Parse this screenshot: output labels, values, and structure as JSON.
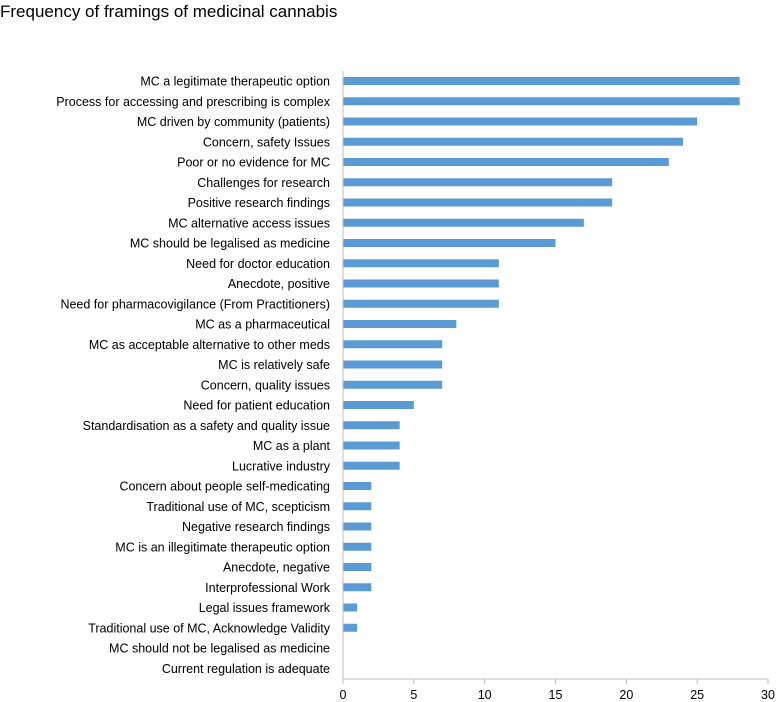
{
  "chart_data": {
    "type": "bar",
    "orientation": "horizontal",
    "title": "Frequency of framings of medicinal cannabis",
    "xlabel": "",
    "ylabel": "",
    "xlim": [
      0,
      30
    ],
    "xticks": [
      0,
      5,
      10,
      15,
      20,
      25,
      30
    ],
    "grid": false,
    "legend": "none",
    "bar_color": "#5b9bd5",
    "categories": [
      "MC a legitimate therapeutic option",
      "Process for accessing and prescribing is complex",
      "MC driven by community (patients)",
      "Concern, safety Issues",
      "Poor or no evidence for MC",
      "Challenges for research",
      "Positive research findings",
      "MC alternative access issues",
      "MC should be legalised as medicine",
      "Need for doctor education",
      "Anecdote, positive",
      "Need for pharmacovigilance (From Practitioners)",
      "MC as a pharmaceutical",
      "MC as acceptable alternative to other meds",
      "MC is relatively safe",
      "Concern, quality issues",
      "Need for patient education",
      "Standardisation as a safety and quality issue",
      "MC as a plant",
      "Lucrative industry",
      "Concern about people self-medicating",
      "Traditional use of MC, scepticism",
      "Negative research findings",
      "MC is an illegitimate therapeutic option",
      "Anecdote, negative",
      "Interprofessional Work",
      "Legal issues framework",
      "Traditional use of MC, Acknowledge Validity",
      "MC should not be legalised as medicine",
      "Current regulation is adequate"
    ],
    "values": [
      28,
      28,
      25,
      24,
      23,
      19,
      19,
      17,
      15,
      11,
      11,
      11,
      8,
      7,
      7,
      7,
      5,
      4,
      4,
      4,
      2,
      2,
      2,
      2,
      2,
      2,
      1,
      1,
      0,
      0
    ]
  }
}
